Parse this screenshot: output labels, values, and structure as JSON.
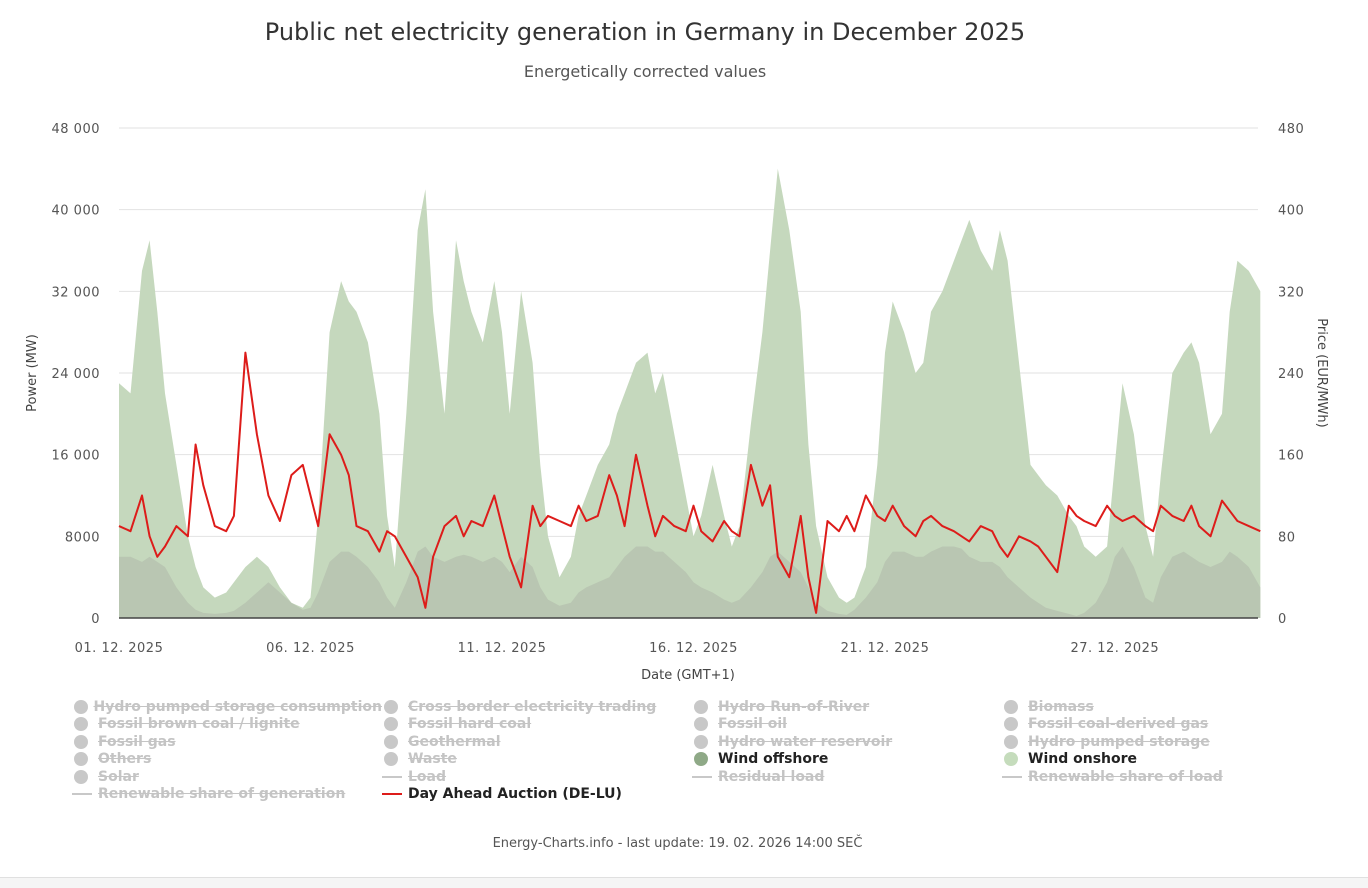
{
  "chart_data": {
    "type": "area",
    "title": "Public net electricity generation in Germany in December 2025",
    "subtitle": "Energetically corrected values",
    "xlabel": "Date (GMT+1)",
    "ylabel": "Power (MW)",
    "y2label": "Price (EUR/MWh)",
    "ylim": [
      0,
      48000
    ],
    "y2lim": [
      0,
      480
    ],
    "yticks": [
      "0",
      "8000",
      "16 000",
      "24 000",
      "32 000",
      "40 000",
      "48 000"
    ],
    "y2ticks": [
      "0",
      "80",
      "160",
      "240",
      "320",
      "400",
      "480"
    ],
    "xticks": [
      "01. 12. 2025",
      "06. 12. 2025",
      "11. 12. 2025",
      "16. 12. 2025",
      "21. 12. 2025",
      "27. 12. 2025"
    ],
    "xtick_days": [
      0,
      5,
      10,
      15,
      20,
      26
    ],
    "x_days": [
      0,
      0.3,
      0.6,
      0.8,
      1.0,
      1.2,
      1.5,
      1.8,
      2.0,
      2.2,
      2.5,
      2.8,
      3.0,
      3.3,
      3.6,
      3.9,
      4.2,
      4.5,
      4.8,
      5.0,
      5.2,
      5.5,
      5.8,
      6.0,
      6.2,
      6.5,
      6.8,
      7.0,
      7.2,
      7.5,
      7.8,
      8.0,
      8.2,
      8.5,
      8.8,
      9.0,
      9.2,
      9.5,
      9.8,
      10.0,
      10.2,
      10.5,
      10.8,
      11.0,
      11.2,
      11.5,
      11.8,
      12.0,
      12.2,
      12.5,
      12.8,
      13.0,
      13.2,
      13.5,
      13.8,
      14.0,
      14.2,
      14.5,
      14.8,
      15.0,
      15.2,
      15.5,
      15.8,
      16.0,
      16.2,
      16.5,
      16.8,
      17.0,
      17.2,
      17.5,
      17.8,
      18.0,
      18.2,
      18.5,
      18.8,
      19.0,
      19.2,
      19.5,
      19.8,
      20.0,
      20.2,
      20.5,
      20.8,
      21.0,
      21.2,
      21.5,
      21.8,
      22.0,
      22.2,
      22.5,
      22.8,
      23.0,
      23.2,
      23.5,
      23.8,
      24.0,
      24.2,
      24.5,
      24.8,
      25.0,
      25.2,
      25.5,
      25.8,
      26.0,
      26.2,
      26.5,
      26.8,
      27.0,
      27.2,
      27.5,
      27.8,
      28.0,
      28.2,
      28.5,
      28.8,
      29.0,
      29.2,
      29.5,
      29.8
    ],
    "series": [
      {
        "name": "Wind onshore",
        "color": "#c5d8bd",
        "values": [
          23000,
          22000,
          34000,
          37000,
          30000,
          22000,
          15000,
          8000,
          5000,
          3000,
          2000,
          2500,
          3500,
          5000,
          6000,
          5000,
          3000,
          1500,
          1000,
          2000,
          10000,
          28000,
          33000,
          31000,
          30000,
          27000,
          20000,
          10000,
          5000,
          20000,
          38000,
          42000,
          30000,
          20000,
          37000,
          33000,
          30000,
          27000,
          33000,
          28000,
          20000,
          32000,
          25000,
          15000,
          8000,
          4000,
          6000,
          10000,
          12000,
          15000,
          17000,
          20000,
          22000,
          25000,
          26000,
          22000,
          24000,
          18000,
          12000,
          8000,
          10000,
          15000,
          10000,
          7000,
          9000,
          19000,
          28000,
          36000,
          44000,
          38000,
          30000,
          17000,
          9000,
          4000,
          2000,
          1500,
          2000,
          5000,
          15000,
          26000,
          31000,
          28000,
          24000,
          25000,
          30000,
          32000,
          35000,
          37000,
          39000,
          36000,
          34000,
          38000,
          35000,
          25000,
          15000,
          14000,
          13000,
          12000,
          10000,
          9000,
          7000,
          6000,
          7000,
          15000,
          23000,
          18000,
          9000,
          6000,
          14000,
          24000,
          26000,
          27000,
          25000,
          18000,
          20000,
          30000,
          35000,
          34000,
          32000
        ]
      },
      {
        "name": "Wind offshore",
        "color": "#b9c6b2",
        "values": [
          6000,
          6000,
          5500,
          6000,
          5500,
          5000,
          3000,
          1500,
          800,
          500,
          400,
          500,
          700,
          1500,
          2500,
          3500,
          2500,
          1500,
          800,
          1000,
          2500,
          5500,
          6500,
          6500,
          6000,
          5000,
          3500,
          2000,
          1000,
          3500,
          6500,
          7000,
          6000,
          5500,
          6000,
          6200,
          6000,
          5500,
          6000,
          5500,
          4500,
          6000,
          5000,
          3000,
          1800,
          1200,
          1500,
          2500,
          3000,
          3500,
          4000,
          5000,
          6000,
          7000,
          7000,
          6500,
          6500,
          5500,
          4500,
          3500,
          3000,
          2500,
          1800,
          1500,
          1800,
          3000,
          4500,
          6000,
          6500,
          5500,
          4500,
          3000,
          1500,
          700,
          400,
          300,
          800,
          2000,
          3500,
          5500,
          6500,
          6500,
          6000,
          6000,
          6500,
          7000,
          7000,
          6800,
          6000,
          5500,
          5500,
          5000,
          4000,
          3000,
          2000,
          1500,
          1000,
          700,
          400,
          200,
          500,
          1500,
          3500,
          6000,
          7000,
          5000,
          2000,
          1500,
          4000,
          6000,
          6500,
          6000,
          5500,
          5000,
          5500,
          6500,
          6000,
          5000,
          3000
        ]
      },
      {
        "name": "Day Ahead Auction (DE-LU)",
        "color": "#dd1c1a",
        "axis": "right",
        "values": [
          90,
          85,
          120,
          80,
          60,
          70,
          90,
          80,
          170,
          130,
          90,
          85,
          100,
          260,
          180,
          120,
          95,
          140,
          150,
          120,
          90,
          180,
          160,
          140,
          90,
          85,
          65,
          85,
          80,
          60,
          40,
          10,
          60,
          90,
          100,
          80,
          95,
          90,
          120,
          90,
          60,
          30,
          110,
          90,
          100,
          95,
          90,
          110,
          95,
          100,
          140,
          120,
          90,
          160,
          110,
          80,
          100,
          90,
          85,
          110,
          85,
          75,
          95,
          85,
          80,
          150,
          110,
          130,
          60,
          40,
          100,
          40,
          5,
          95,
          85,
          100,
          85,
          120,
          100,
          95,
          110,
          90,
          80,
          95,
          100,
          90,
          85,
          80,
          75,
          90,
          85,
          70,
          60,
          80,
          75,
          70,
          60,
          45,
          110,
          100,
          95,
          90,
          110,
          100,
          95,
          100,
          90,
          85,
          110,
          100,
          95,
          110,
          90,
          80,
          115,
          105,
          95,
          90,
          85
        ]
      }
    ]
  },
  "legend": {
    "hydro_pumped_consumption": "Hydro pumped storage consumption",
    "cross_border": "Cross border electricity trading",
    "hydro_ror": "Hydro Run-of-River",
    "biomass": "Biomass",
    "brown_coal": "Fossil brown coal / lignite",
    "hard_coal": "Fossil hard coal",
    "fossil_oil": "Fossil oil",
    "coal_gas": "Fossil coal-derived gas",
    "fossil_gas": "Fossil gas",
    "geothermal": "Geothermal",
    "hydro_reservoir": "Hydro water reservoir",
    "hydro_pumped": "Hydro pumped storage",
    "others": "Others",
    "waste": "Waste",
    "wind_offshore": "Wind offshore",
    "wind_onshore": "Wind onshore",
    "solar": "Solar",
    "load": "Load",
    "residual_load": "Residual load",
    "renewable_share_load": "Renewable share of load",
    "renewable_share_gen": "Renewable share of generation",
    "day_ahead": "Day Ahead Auction (DE-LU)",
    "wind_offshore_color": "#8fa987",
    "wind_onshore_color": "#c5dcbc",
    "day_ahead_color": "#dd1c1a"
  },
  "footer": "Energy-Charts.info - last update: 19. 02. 2026 14:00 SEČ"
}
